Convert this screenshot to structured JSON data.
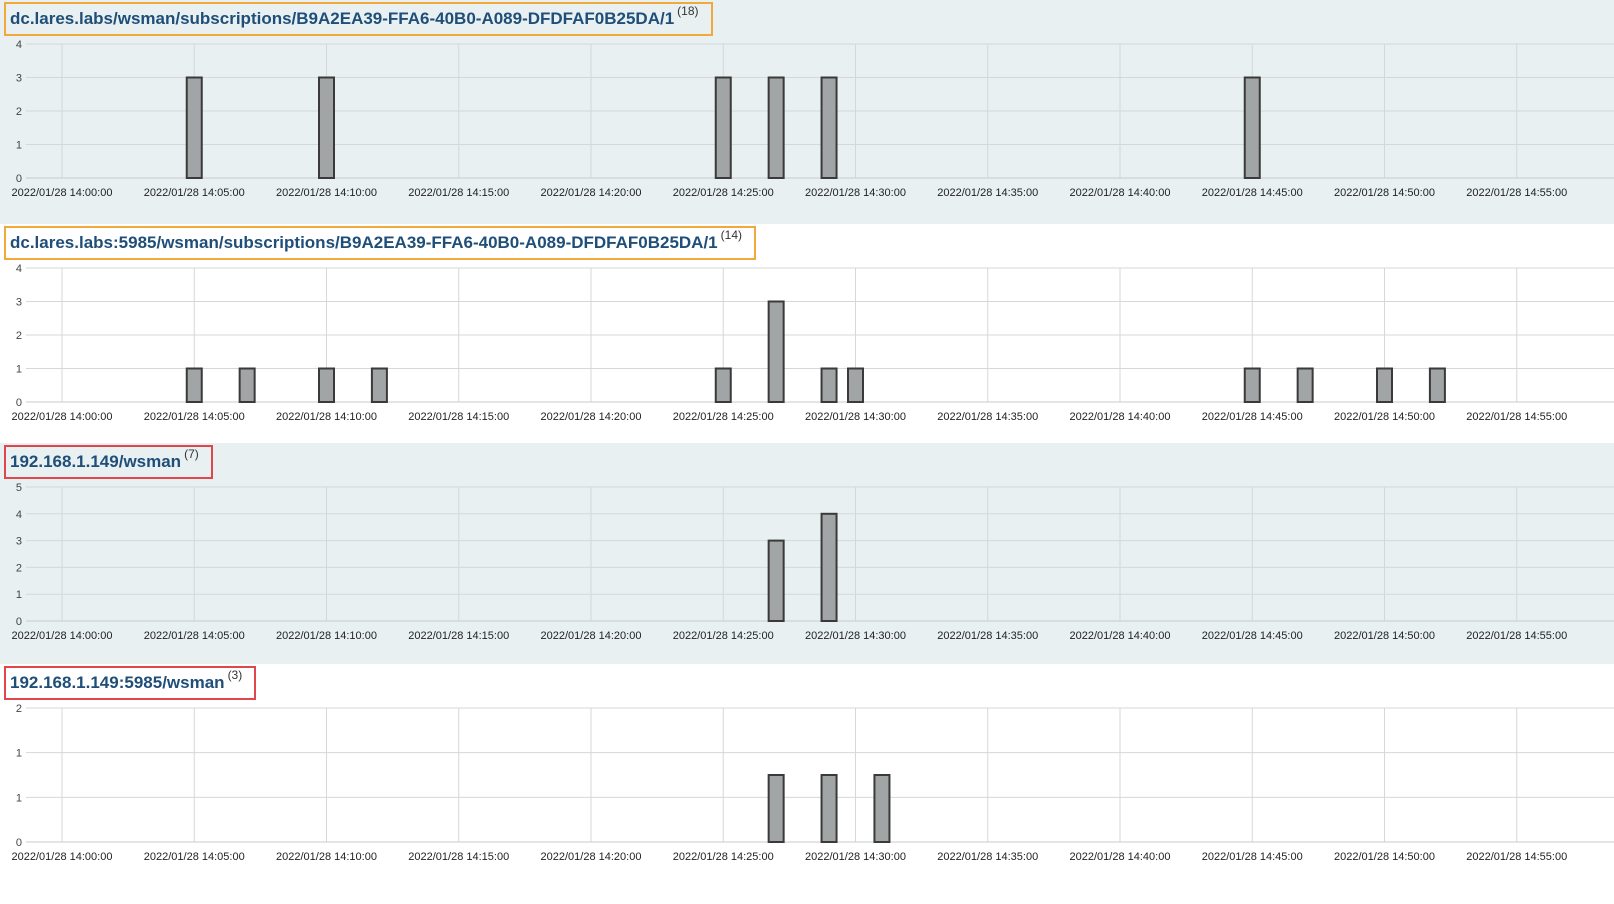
{
  "colors": {
    "shaded_bg": "#e8f0f1",
    "title_text": "#1f4e79",
    "box_orange": "#f0a93a",
    "box_red": "#e0474c",
    "bar_fill": "#a2a5a5",
    "bar_stroke": "#3a3a3a"
  },
  "chart_data": [
    {
      "type": "bar",
      "title": "dc.lares.labs/wsman/subscriptions/B9A2EA39-FFA6-40B0-A089-DFDFAF0B25DA/1",
      "count_label": "(18)",
      "box_color": "orange",
      "shaded": true,
      "ylim": [
        0,
        4
      ],
      "y_ticks": [
        "0",
        "1",
        "2",
        "3",
        "4"
      ],
      "x_tick_labels": [
        "2022/01/28 14:00:00",
        "2022/01/28 14:05:00",
        "2022/01/28 14:10:00",
        "2022/01/28 14:15:00",
        "2022/01/28 14:20:00",
        "2022/01/28 14:25:00",
        "2022/01/28 14:30:00",
        "2022/01/28 14:35:00",
        "2022/01/28 14:40:00",
        "2022/01/28 14:45:00",
        "2022/01/28 14:50:00",
        "2022/01/28 14:55:00"
      ],
      "x_unit": "minutes",
      "x": [
        5,
        10,
        25,
        27,
        29,
        45
      ],
      "values": [
        3,
        3,
        3,
        3,
        3,
        3
      ]
    },
    {
      "type": "bar",
      "title": "dc.lares.labs:5985/wsman/subscriptions/B9A2EA39-FFA6-40B0-A089-DFDFAF0B25DA/1",
      "count_label": "(14)",
      "box_color": "orange",
      "shaded": false,
      "ylim": [
        0,
        4
      ],
      "y_ticks": [
        "0",
        "1",
        "2",
        "3",
        "4"
      ],
      "x_tick_labels": [
        "2022/01/28 14:00:00",
        "2022/01/28 14:05:00",
        "2022/01/28 14:10:00",
        "2022/01/28 14:15:00",
        "2022/01/28 14:20:00",
        "2022/01/28 14:25:00",
        "2022/01/28 14:30:00",
        "2022/01/28 14:35:00",
        "2022/01/28 14:40:00",
        "2022/01/28 14:45:00",
        "2022/01/28 14:50:00",
        "2022/01/28 14:55:00"
      ],
      "x_unit": "minutes",
      "x": [
        5,
        7,
        10,
        12,
        25,
        27,
        29,
        30,
        45,
        47,
        50,
        52
      ],
      "values": [
        1,
        1,
        1,
        1,
        1,
        3,
        1,
        1,
        1,
        1,
        1,
        1
      ]
    },
    {
      "type": "bar",
      "title": "192.168.1.149/wsman",
      "count_label": "(7)",
      "box_color": "red",
      "shaded": true,
      "ylim": [
        0,
        5
      ],
      "y_ticks": [
        "0",
        "1",
        "2",
        "3",
        "4",
        "5"
      ],
      "x_tick_labels": [
        "2022/01/28 14:00:00",
        "2022/01/28 14:05:00",
        "2022/01/28 14:10:00",
        "2022/01/28 14:15:00",
        "2022/01/28 14:20:00",
        "2022/01/28 14:25:00",
        "2022/01/28 14:30:00",
        "2022/01/28 14:35:00",
        "2022/01/28 14:40:00",
        "2022/01/28 14:45:00",
        "2022/01/28 14:50:00",
        "2022/01/28 14:55:00"
      ],
      "x_unit": "minutes",
      "x": [
        27,
        29
      ],
      "values": [
        3,
        4
      ]
    },
    {
      "type": "bar",
      "title": "192.168.1.149:5985/wsman",
      "count_label": "(3)",
      "box_color": "red",
      "shaded": false,
      "ylim": [
        0,
        2
      ],
      "y_ticks": [
        "0",
        "1",
        "1",
        "2"
      ],
      "x_tick_labels": [
        "2022/01/28 14:00:00",
        "2022/01/28 14:05:00",
        "2022/01/28 14:10:00",
        "2022/01/28 14:15:00",
        "2022/01/28 14:20:00",
        "2022/01/28 14:25:00",
        "2022/01/28 14:30:00",
        "2022/01/28 14:35:00",
        "2022/01/28 14:40:00",
        "2022/01/28 14:45:00",
        "2022/01/28 14:50:00",
        "2022/01/28 14:55:00"
      ],
      "x_unit": "minutes",
      "x": [
        27,
        29,
        31
      ],
      "values": [
        1,
        1,
        1
      ]
    }
  ]
}
